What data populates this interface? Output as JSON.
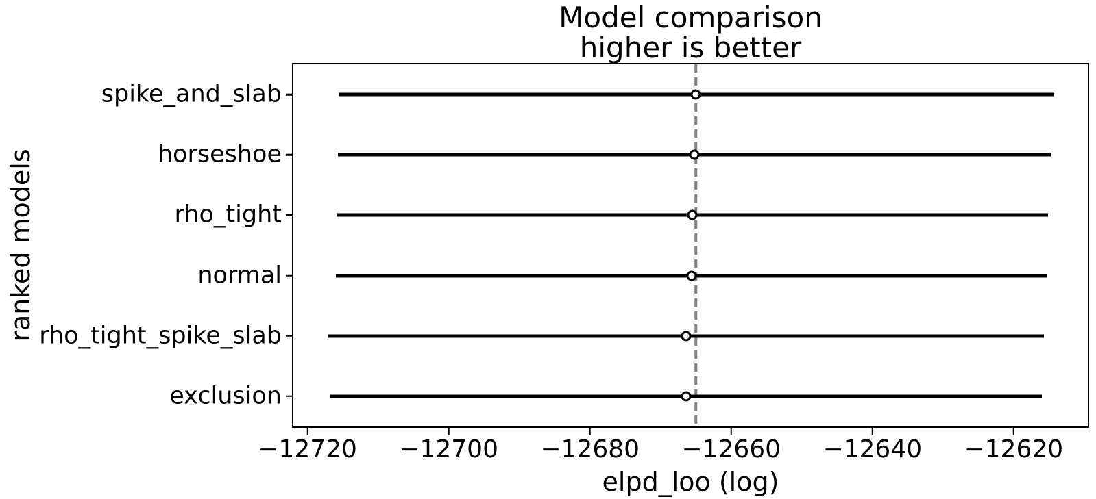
{
  "figure": {
    "title_line1": "Model comparison",
    "title_line2": "higher is better",
    "xlabel": "elpd_loo (log)",
    "ylabel": "ranked models"
  },
  "colors": {
    "line": "#000000",
    "marker_fill": "#ffffff",
    "marker_edge": "#000000",
    "vline": "#808080",
    "text": "#000000",
    "background": "#ffffff"
  },
  "chart_data": {
    "type": "errorbar",
    "orientation": "horizontal",
    "title": "Model comparison\nhigher is better",
    "xlabel": "elpd_loo (log)",
    "ylabel": "ranked models",
    "grid": false,
    "legend": false,
    "categories": [
      "spike_and_slab",
      "horseshoe",
      "rho_tight",
      "normal",
      "rho_tight_spike_slab",
      "exclusion"
    ],
    "models": [
      {
        "name": "spike_and_slab",
        "elpd_loo": -12665.0,
        "se": 50.6
      },
      {
        "name": "horseshoe",
        "elpd_loo": -12665.2,
        "se": 50.5
      },
      {
        "name": "rho_tight",
        "elpd_loo": -12665.5,
        "se": 50.4
      },
      {
        "name": "normal",
        "elpd_loo": -12665.6,
        "se": 50.4
      },
      {
        "name": "rho_tight_spike_slab",
        "elpd_loo": -12666.4,
        "se": 50.7
      },
      {
        "name": "exclusion",
        "elpd_loo": -12666.4,
        "se": 50.4
      }
    ],
    "vline": -12665.0,
    "xlim": [
      -12722,
      -12609.5
    ],
    "ylim": [
      -0.5,
      5.5
    ],
    "xticks": [
      -12720,
      -12700,
      -12680,
      -12660,
      -12640,
      -12620
    ],
    "xtick_labels": [
      "−12720",
      "−12700",
      "−12680",
      "−12660",
      "−12640",
      "−12620"
    ]
  }
}
